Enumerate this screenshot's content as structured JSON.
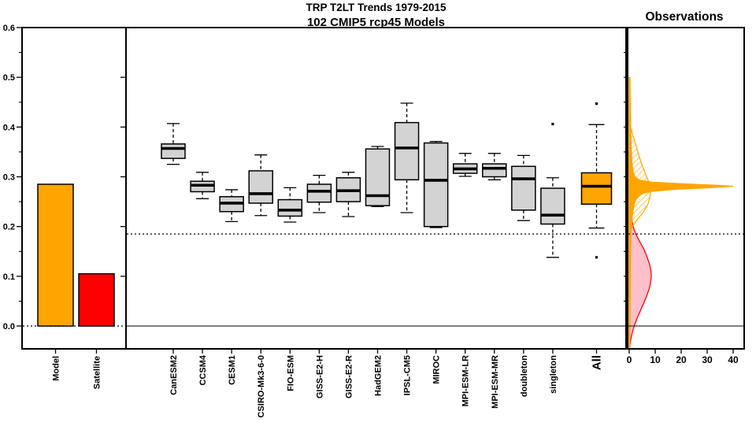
{
  "title": {
    "line1": "TRP T2LT Trends 1979-2015",
    "line2": "102 CMIP5 rcp45 Models"
  },
  "observations": {
    "title": "Observations"
  },
  "colors": {
    "orange": "#FFA500",
    "red": "#FF0000",
    "box_gray": "#D3D3D3",
    "pink": "#FFC0CB",
    "black": "#000000"
  },
  "chart_data": [
    {
      "type": "bar",
      "panel": "trend-bars",
      "categories": [
        "Model",
        "Satellite"
      ],
      "values": [
        0.285,
        0.105
      ],
      "bar_colors": [
        "#FFA500",
        "#FF0000"
      ],
      "ylim": [
        -0.046,
        0.6
      ],
      "yticks": [
        0,
        0.1,
        0.2,
        0.3,
        0.4,
        0.5,
        0.6
      ],
      "ytick_labels": [
        "0.0",
        "0.1",
        "0.2",
        "0.3",
        "0.4",
        "0.5",
        "0.6"
      ],
      "yticks_minor": [
        0.05,
        0.15,
        0.25,
        0.35,
        0.45,
        0.55
      ],
      "zero_line_style": "dotted"
    },
    {
      "type": "boxplot",
      "panel": "cmip5-boxplots",
      "ylim": [
        -0.046,
        0.6
      ],
      "reference_lines": [
        {
          "y": 0.185,
          "style": "dotted"
        },
        {
          "y": 0.0,
          "style": "solid"
        }
      ],
      "boxes": [
        {
          "label": "CanESM2",
          "lo": 0.325,
          "q1": 0.337,
          "med": 0.357,
          "q3": 0.366,
          "hi": 0.407,
          "outliers": [],
          "color": "#D3D3D3",
          "emphasized": false
        },
        {
          "label": "CCSM4",
          "lo": 0.256,
          "q1": 0.27,
          "med": 0.283,
          "q3": 0.291,
          "hi": 0.309,
          "outliers": [],
          "color": "#D3D3D3",
          "emphasized": false
        },
        {
          "label": "CESM1",
          "lo": 0.21,
          "q1": 0.23,
          "med": 0.247,
          "q3": 0.26,
          "hi": 0.274,
          "outliers": [],
          "color": "#D3D3D3",
          "emphasized": false
        },
        {
          "label": "CSIRO-Mk3-6-0",
          "lo": 0.222,
          "q1": 0.247,
          "med": 0.266,
          "q3": 0.312,
          "hi": 0.344,
          "outliers": [],
          "color": "#D3D3D3",
          "emphasized": false
        },
        {
          "label": "FIO-ESM",
          "lo": 0.209,
          "q1": 0.221,
          "med": 0.233,
          "q3": 0.254,
          "hi": 0.278,
          "outliers": [],
          "color": "#D3D3D3",
          "emphasized": false
        },
        {
          "label": "GISS-E2-H",
          "lo": 0.228,
          "q1": 0.249,
          "med": 0.271,
          "q3": 0.285,
          "hi": 0.303,
          "outliers": [],
          "color": "#D3D3D3",
          "emphasized": false
        },
        {
          "label": "GISS-E2-R",
          "lo": 0.22,
          "q1": 0.25,
          "med": 0.272,
          "q3": 0.298,
          "hi": 0.309,
          "outliers": [],
          "color": "#D3D3D3",
          "emphasized": false
        },
        {
          "label": "HadGEM2",
          "lo": 0.24,
          "q1": 0.242,
          "med": 0.262,
          "q3": 0.356,
          "hi": 0.361,
          "outliers": [],
          "color": "#D3D3D3",
          "emphasized": false
        },
        {
          "label": "IPSL-CM5",
          "lo": 0.228,
          "q1": 0.294,
          "med": 0.358,
          "q3": 0.409,
          "hi": 0.448,
          "outliers": [],
          "color": "#D3D3D3",
          "emphasized": false
        },
        {
          "label": "MIROC",
          "lo": 0.198,
          "q1": 0.2,
          "med": 0.293,
          "q3": 0.368,
          "hi": 0.371,
          "outliers": [],
          "color": "#D3D3D3",
          "emphasized": false
        },
        {
          "label": "MPI-ESM-LR",
          "lo": 0.301,
          "q1": 0.307,
          "med": 0.316,
          "q3": 0.326,
          "hi": 0.347,
          "outliers": [],
          "color": "#D3D3D3",
          "emphasized": false
        },
        {
          "label": "MPI-ESM-MR",
          "lo": 0.294,
          "q1": 0.3,
          "med": 0.317,
          "q3": 0.326,
          "hi": 0.347,
          "outliers": [],
          "color": "#D3D3D3",
          "emphasized": false
        },
        {
          "label": "doubleton",
          "lo": 0.212,
          "q1": 0.233,
          "med": 0.296,
          "q3": 0.321,
          "hi": 0.343,
          "outliers": [],
          "color": "#D3D3D3",
          "emphasized": false
        },
        {
          "label": "singleton",
          "lo": 0.138,
          "q1": 0.205,
          "med": 0.223,
          "q3": 0.277,
          "hi": 0.298,
          "outliers": [
            0.406
          ],
          "color": "#D3D3D3",
          "emphasized": false
        },
        {
          "label": "All",
          "lo": 0.197,
          "q1": 0.245,
          "med": 0.281,
          "q3": 0.308,
          "hi": 0.405,
          "outliers": [
            0.447,
            0.138
          ],
          "color": "#FFA500",
          "emphasized": true
        }
      ]
    },
    {
      "type": "area",
      "panel": "observations-density",
      "title": "Observations",
      "xlim": [
        0,
        44
      ],
      "xticks": [
        0,
        10,
        20,
        30,
        40
      ],
      "xtick_labels": [
        "0",
        "10",
        "20",
        "30",
        "40"
      ],
      "ylim": [
        -0.046,
        0.6
      ],
      "yticks_minor": [
        0.05,
        0.1,
        0.15,
        0.2,
        0.25,
        0.3,
        0.35,
        0.4,
        0.45,
        0.5,
        0.55
      ],
      "reference_lines": [
        {
          "y": 0.185,
          "style": "dotted"
        },
        {
          "y": 0.0,
          "style": "solid"
        }
      ],
      "series": [
        {
          "name": "satellite-trend-density",
          "style": "solid",
          "color": "#FFC0CB",
          "stroke": "#FF0000",
          "points": [
            [
              0.35,
              0.15
            ],
            [
              0.31,
              0.25
            ],
            [
              0.28,
              0.35
            ],
            [
              0.25,
              0.5
            ],
            [
              0.23,
              0.7
            ],
            [
              0.21,
              1.1
            ],
            [
              0.195,
              1.8
            ],
            [
              0.185,
              2.5
            ],
            [
              0.17,
              4.0
            ],
            [
              0.155,
              5.6
            ],
            [
              0.14,
              6.8
            ],
            [
              0.125,
              7.8
            ],
            [
              0.11,
              8.4
            ],
            [
              0.1,
              8.5
            ],
            [
              0.09,
              8.3
            ],
            [
              0.075,
              7.7
            ],
            [
              0.06,
              6.7
            ],
            [
              0.045,
              5.5
            ],
            [
              0.03,
              4.2
            ],
            [
              0.015,
              3.0
            ],
            [
              0.0,
              1.9
            ],
            [
              -0.015,
              1.1
            ],
            [
              -0.03,
              0.5
            ],
            [
              -0.044,
              0.15
            ]
          ]
        },
        {
          "name": "model-trend-density-hatched",
          "style": "hatched",
          "color": "#FFA500",
          "stroke": "#FFA500",
          "points": [
            [
              0.41,
              0.05
            ],
            [
              0.395,
              0.8
            ],
            [
              0.38,
              1.6
            ],
            [
              0.365,
              2.5
            ],
            [
              0.35,
              3.3
            ],
            [
              0.335,
              4.2
            ],
            [
              0.32,
              5.2
            ],
            [
              0.305,
              6.3
            ],
            [
              0.29,
              7.5
            ],
            [
              0.275,
              8.2
            ],
            [
              0.26,
              8.0
            ],
            [
              0.245,
              7.2
            ],
            [
              0.23,
              5.6
            ],
            [
              0.215,
              3.2
            ],
            [
              0.2,
              1.2
            ],
            [
              0.19,
              0.2
            ]
          ]
        },
        {
          "name": "model-trend-density",
          "style": "solid",
          "color": "#FFA500",
          "stroke": "#FFA500",
          "points": [
            [
              0.5,
              0.3
            ],
            [
              0.45,
              0.4
            ],
            [
              0.4,
              0.55
            ],
            [
              0.36,
              0.75
            ],
            [
              0.33,
              1.0
            ],
            [
              0.31,
              1.5
            ],
            [
              0.3,
              2.2
            ],
            [
              0.293,
              4
            ],
            [
              0.289,
              9
            ],
            [
              0.286,
              20
            ],
            [
              0.283,
              33
            ],
            [
              0.281,
              40
            ],
            [
              0.278,
              31
            ],
            [
              0.275,
              18
            ],
            [
              0.271,
              9
            ],
            [
              0.267,
              5.5
            ],
            [
              0.261,
              3.4
            ],
            [
              0.253,
              2.4
            ],
            [
              0.244,
              1.9
            ],
            [
              0.234,
              1.5
            ],
            [
              0.222,
              1.2
            ],
            [
              0.21,
              1.0
            ],
            [
              0.198,
              0.85
            ],
            [
              0.185,
              0.7
            ],
            [
              0.165,
              0.55
            ],
            [
              0.14,
              0.45
            ],
            [
              0.11,
              0.4
            ],
            [
              0.07,
              0.35
            ],
            [
              0.03,
              0.3
            ],
            [
              -0.01,
              0.25
            ],
            [
              -0.044,
              0.2
            ]
          ]
        }
      ]
    }
  ]
}
